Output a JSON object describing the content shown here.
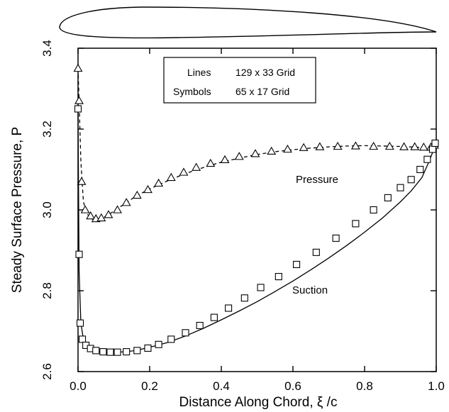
{
  "chart_data": {
    "type": "line",
    "xlabel": "Distance Along Chord, ξ /c",
    "ylabel": "Steady Surface Pressure, P",
    "xlim": [
      0.0,
      1.0
    ],
    "ylim": [
      2.6,
      3.4
    ],
    "xticks": [
      "0.0",
      "0.2",
      "0.4",
      "0.6",
      "0.8",
      "1.0"
    ],
    "yticks": [
      "2.6",
      "2.8",
      "3.0",
      "3.2",
      "3.4"
    ],
    "legend": {
      "position": "top-center",
      "rows": [
        {
          "label": "Lines",
          "text": "129 x 33 Grid"
        },
        {
          "label": "Symbols",
          "text": "65 x 17 Grid"
        }
      ]
    },
    "annotations": [
      {
        "text": "Pressure",
        "x": 0.63,
        "y": 3.04
      },
      {
        "text": "Suction",
        "x": 0.62,
        "y": 2.775
      }
    ],
    "series": [
      {
        "name": "Pressure",
        "line_style": "dashed",
        "marker": "triangle",
        "line": {
          "x": [
            0.0,
            0.003,
            0.008,
            0.015,
            0.025,
            0.04,
            0.06,
            0.08,
            0.1,
            0.13,
            0.16,
            0.2,
            0.25,
            0.3,
            0.35,
            0.4,
            0.45,
            0.5,
            0.55,
            0.6,
            0.65,
            0.7,
            0.75,
            0.8,
            0.85,
            0.9,
            0.95,
            0.98,
            1.0
          ],
          "y": [
            3.35,
            3.27,
            3.12,
            3.02,
            2.99,
            2.977,
            2.978,
            2.985,
            2.997,
            3.015,
            3.033,
            3.052,
            3.072,
            3.09,
            3.105,
            3.118,
            3.128,
            3.137,
            3.144,
            3.149,
            3.153,
            3.156,
            3.158,
            3.159,
            3.158,
            3.157,
            3.155,
            3.155,
            3.16
          ]
        },
        "markers": {
          "x": [
            0.0,
            0.003,
            0.01,
            0.02,
            0.035,
            0.05,
            0.065,
            0.085,
            0.11,
            0.135,
            0.165,
            0.195,
            0.225,
            0.26,
            0.295,
            0.33,
            0.37,
            0.41,
            0.45,
            0.495,
            0.54,
            0.585,
            0.63,
            0.675,
            0.725,
            0.775,
            0.825,
            0.87,
            0.91,
            0.94,
            0.965,
            0.985,
            0.995
          ],
          "y": [
            3.35,
            3.27,
            3.07,
            3.0,
            2.985,
            2.978,
            2.98,
            2.988,
            3.0,
            3.018,
            3.036,
            3.05,
            3.066,
            3.08,
            3.093,
            3.105,
            3.115,
            3.124,
            3.132,
            3.139,
            3.145,
            3.15,
            3.154,
            3.156,
            3.157,
            3.158,
            3.157,
            3.157,
            3.156,
            3.156,
            3.155,
            3.155,
            3.16
          ]
        }
      },
      {
        "name": "Suction",
        "line_style": "solid",
        "marker": "square",
        "line": {
          "x": [
            0.0,
            0.003,
            0.008,
            0.015,
            0.025,
            0.04,
            0.06,
            0.08,
            0.1,
            0.13,
            0.16,
            0.2,
            0.25,
            0.3,
            0.35,
            0.4,
            0.45,
            0.5,
            0.55,
            0.6,
            0.65,
            0.7,
            0.75,
            0.8,
            0.85,
            0.9,
            0.93,
            0.96,
            0.98,
            1.0
          ],
          "y": [
            3.24,
            2.85,
            2.72,
            2.68,
            2.665,
            2.655,
            2.65,
            2.648,
            2.648,
            2.649,
            2.652,
            2.66,
            2.672,
            2.688,
            2.707,
            2.728,
            2.75,
            2.773,
            2.798,
            2.824,
            2.852,
            2.881,
            2.912,
            2.945,
            2.98,
            3.02,
            3.047,
            3.08,
            3.12,
            3.165
          ]
        },
        "markers": {
          "x": [
            0.0,
            0.003,
            0.006,
            0.012,
            0.022,
            0.035,
            0.05,
            0.07,
            0.09,
            0.11,
            0.135,
            0.165,
            0.195,
            0.225,
            0.26,
            0.3,
            0.34,
            0.38,
            0.42,
            0.465,
            0.51,
            0.56,
            0.61,
            0.665,
            0.72,
            0.775,
            0.825,
            0.865,
            0.9,
            0.93,
            0.955,
            0.975,
            0.99,
            0.997
          ],
          "y": [
            3.25,
            2.89,
            2.72,
            2.68,
            2.665,
            2.657,
            2.652,
            2.649,
            2.648,
            2.648,
            2.649,
            2.652,
            2.658,
            2.667,
            2.68,
            2.696,
            2.714,
            2.734,
            2.757,
            2.782,
            2.808,
            2.835,
            2.865,
            2.895,
            2.93,
            2.966,
            3.0,
            3.03,
            3.055,
            3.075,
            3.1,
            3.125,
            3.15,
            3.165
          ]
        }
      }
    ]
  }
}
